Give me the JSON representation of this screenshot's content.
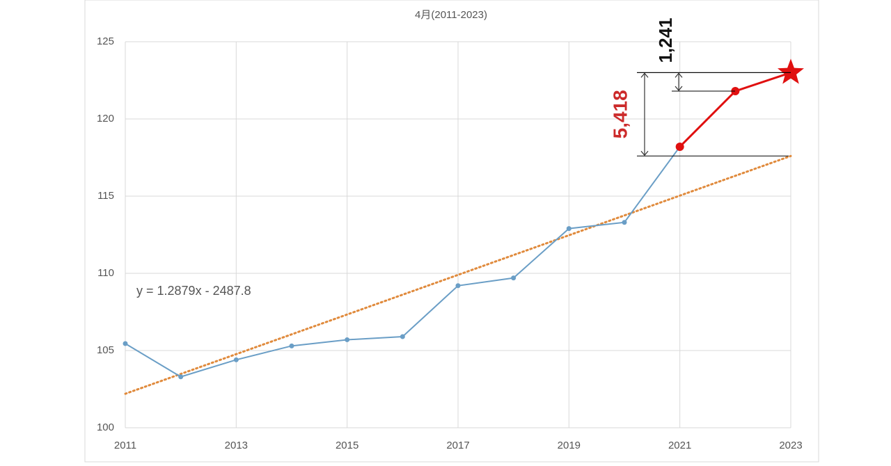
{
  "chart_data": {
    "type": "line",
    "title": "4月(2011-2023)",
    "x": [
      2011,
      2012,
      2013,
      2014,
      2015,
      2016,
      2017,
      2018,
      2019,
      2020,
      2021,
      2022,
      2023
    ],
    "series": [
      {
        "color": "#6a9ec6",
        "marker": "circle",
        "values": [
          105.45,
          103.3,
          104.4,
          105.3,
          105.7,
          105.9,
          109.2,
          109.7,
          112.9,
          113.3,
          118.2,
          null,
          null
        ]
      },
      {
        "color": "#e01010",
        "marker": "circle",
        "end_marker": "star",
        "values": [
          null,
          null,
          null,
          null,
          null,
          null,
          null,
          null,
          null,
          null,
          118.2,
          121.8,
          123.0
        ]
      }
    ],
    "trendline": {
      "label": "y = 1.2879x - 2487.8",
      "color": "#e08a3c",
      "x": [
        2011,
        2023
      ],
      "values": [
        102.2,
        117.6
      ]
    },
    "annotations": [
      {
        "text": "5,418",
        "color": "#cc2a2a",
        "from": 117.6,
        "to": 123.0
      },
      {
        "text": "1,241",
        "color": "#111111",
        "from": 121.8,
        "to": 123.0
      }
    ],
    "xlim": [
      2011,
      2023
    ],
    "xticks": [
      2011,
      2013,
      2015,
      2017,
      2019,
      2021,
      2023
    ],
    "ylim": [
      100,
      125
    ],
    "yticks": [
      100,
      105,
      110,
      115,
      120,
      125
    ],
    "grid": true
  }
}
